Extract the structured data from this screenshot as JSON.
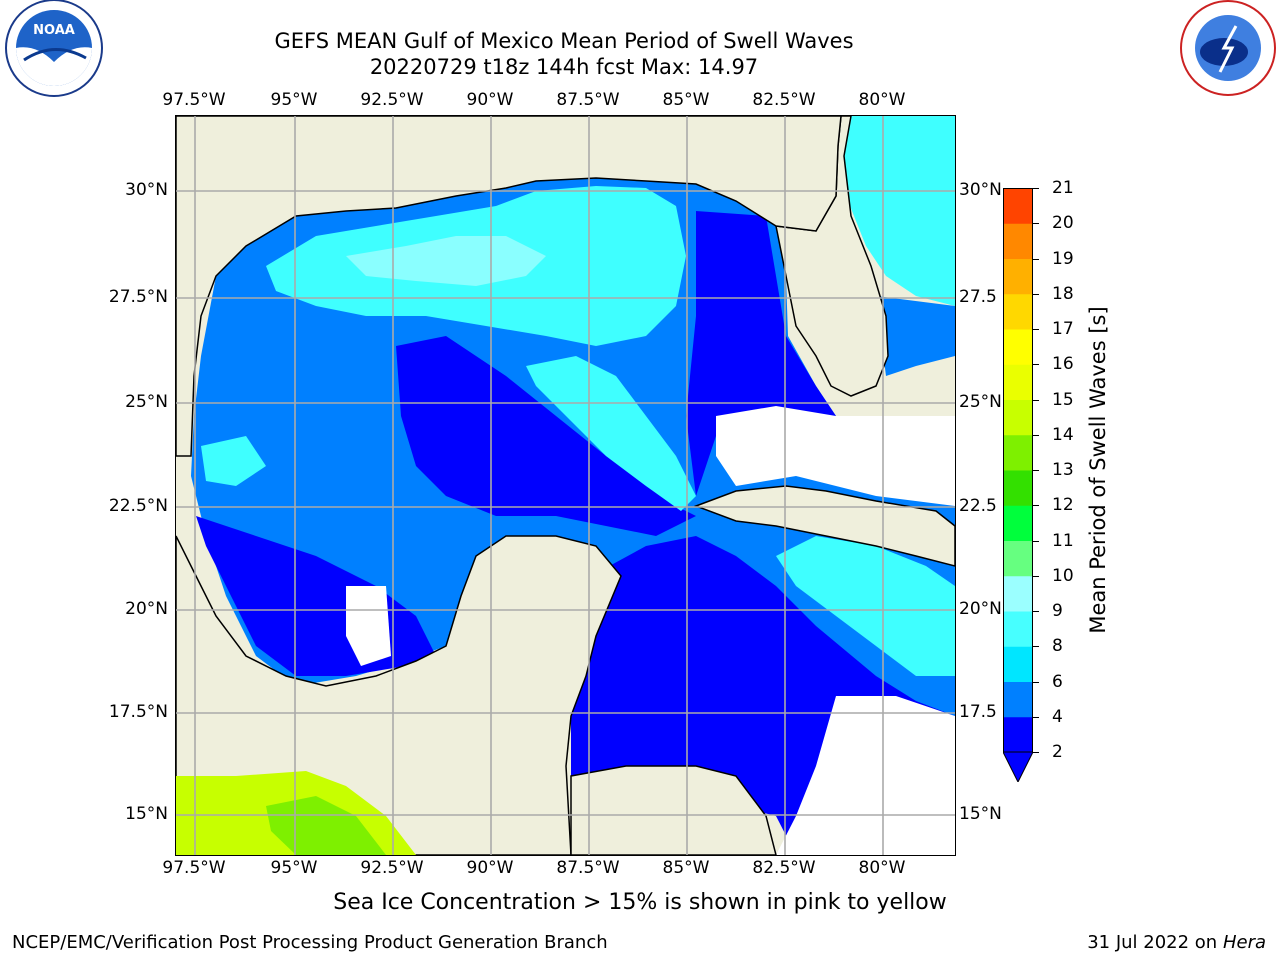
{
  "header": {
    "title_line1": "GEFS MEAN Gulf of Mexico Mean Period of Swell Waves",
    "title_line2": "20220729 t18z 144h fcst   Max: 14.97"
  },
  "logos": {
    "left_text": "NOAA",
    "left_ring_text": "NATIONAL OCEANIC AND ATMOSPHERIC ADMINISTRATION · U.S. DEPARTMENT OF COMMERCE",
    "right_ring_text": "NATIONAL WEATHER SERVICE"
  },
  "map": {
    "lon_labels": [
      "97.5°W",
      "95°W",
      "92.5°W",
      "90°W",
      "87.5°W",
      "85°W",
      "82.5°W",
      "80°W"
    ],
    "lat_labels": [
      "30°N",
      "27.5°N",
      "25°N",
      "22.5°N",
      "20°N",
      "17.5°N",
      "15°N"
    ],
    "lat_labels_right": [
      "30°N",
      "27.5",
      "25°N",
      "22.5",
      "20°N",
      "17.5",
      "15°N"
    ],
    "land_color": "#efefdc",
    "water_nodata_color": "#ffffff",
    "ocean_palette": {
      "2-4": "#0000ff",
      "4-6": "#0080ff",
      "6-8": "#3fffff",
      "8-9": "#8affff",
      "12-14": "#c7ff00"
    }
  },
  "colorbar": {
    "label": "Mean Period of Swell Waves [s]",
    "ticks": [
      "2",
      "4",
      "6",
      "8",
      "9",
      "10",
      "11",
      "12",
      "13",
      "14",
      "15",
      "16",
      "17",
      "18",
      "19",
      "20",
      "21"
    ],
    "colors": [
      "#0000ff",
      "#0080ff",
      "#00e6ff",
      "#47ffff",
      "#9bffff",
      "#66ff80",
      "#00ff3c",
      "#33e000",
      "#7ef000",
      "#c8ff00",
      "#eaff00",
      "#ffff00",
      "#ffd800",
      "#ffb000",
      "#ff8800",
      "#ff4400",
      "#ff0000"
    ]
  },
  "footer": {
    "note": "Sea Ice Concentration > 15% is shown in pink to yellow",
    "left": "NCEP/EMC/Verification Post Processing Product Generation Branch",
    "right_date": "31 Jul 2022 on ",
    "right_machine": "Hera"
  }
}
